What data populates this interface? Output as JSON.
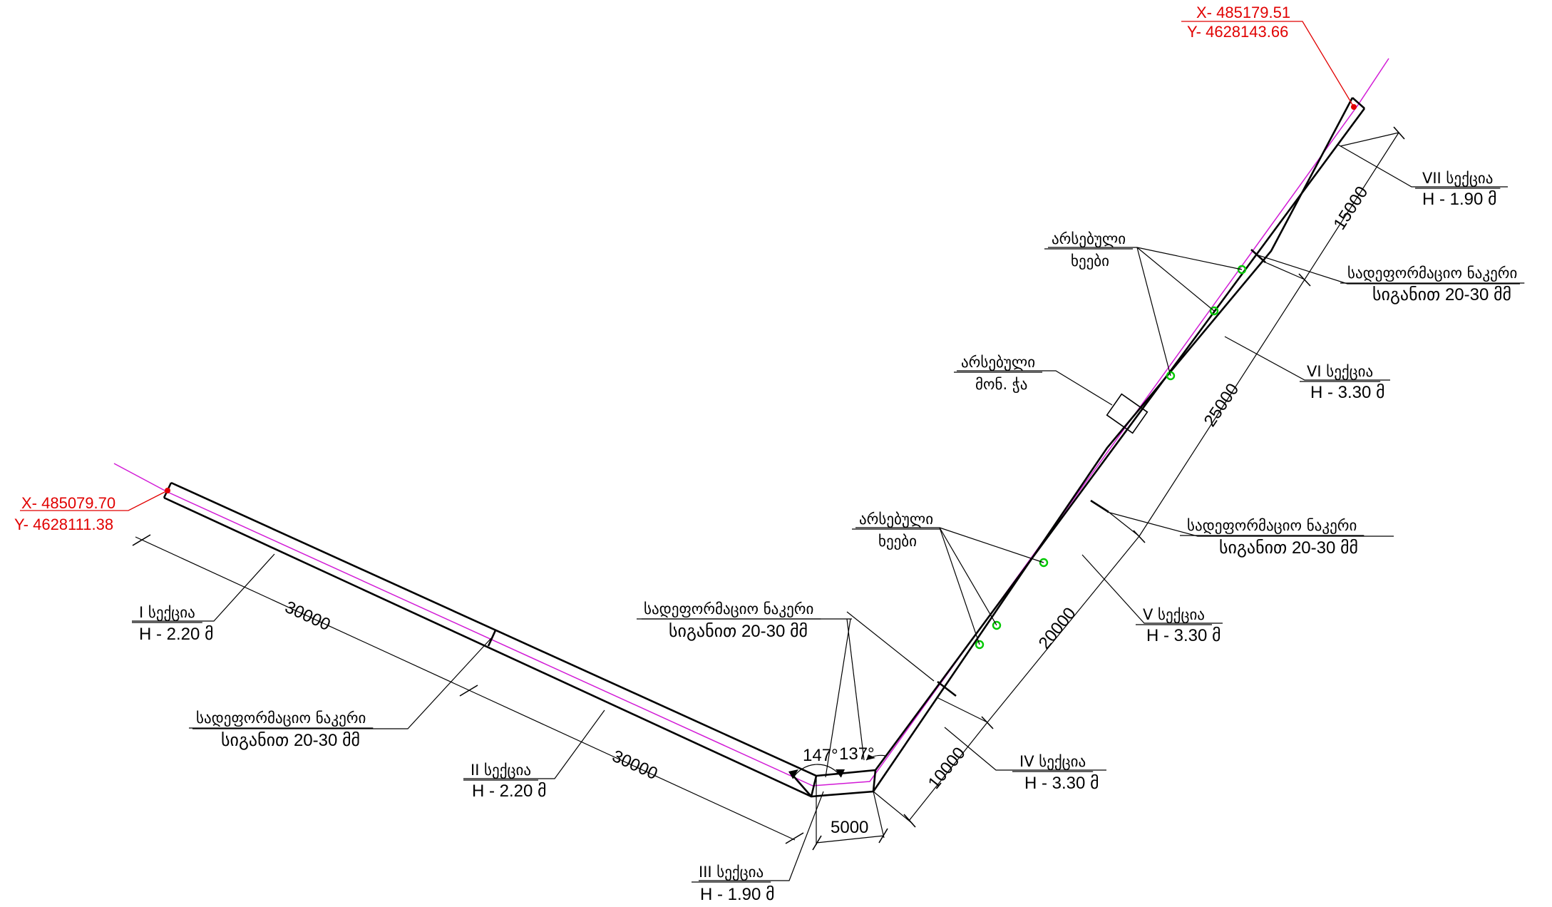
{
  "coordinates": {
    "start": {
      "x": "X- 485079.70",
      "y": "Y- 4628111.38"
    },
    "end": {
      "x": "X- 485179.51",
      "y": "Y- 4628143.66"
    }
  },
  "sections": [
    {
      "name": "I სექცია",
      "height": "H - 2.20 მ"
    },
    {
      "name": "II სექცია",
      "height": "H - 2.20 მ"
    },
    {
      "name": "III სექცია",
      "height": "H - 1.90 მ"
    },
    {
      "name": "IV სექცია",
      "height": "H - 3.30 მ"
    },
    {
      "name": "V სექცია",
      "height": "H - 3.30 მ"
    },
    {
      "name": "VI სექცია",
      "height": "H - 3.30 მ"
    },
    {
      "name": "VII სექცია",
      "height": "H - 1.90 მ"
    }
  ],
  "deformation_joint": {
    "line1": "სადეფორმაციო ნაკერი",
    "line2": "სიგანით 20-30 მმ"
  },
  "existing_trees": {
    "line1": "არსებული",
    "line2": "ხეები"
  },
  "existing_pillar": {
    "line1": "არსებული",
    "line2": "მონ. ჭა"
  },
  "dimensions": [
    "30000",
    "30000",
    "5000",
    "10000",
    "20000",
    "25000",
    "15000"
  ],
  "angles": [
    "147°",
    "137°"
  ]
}
